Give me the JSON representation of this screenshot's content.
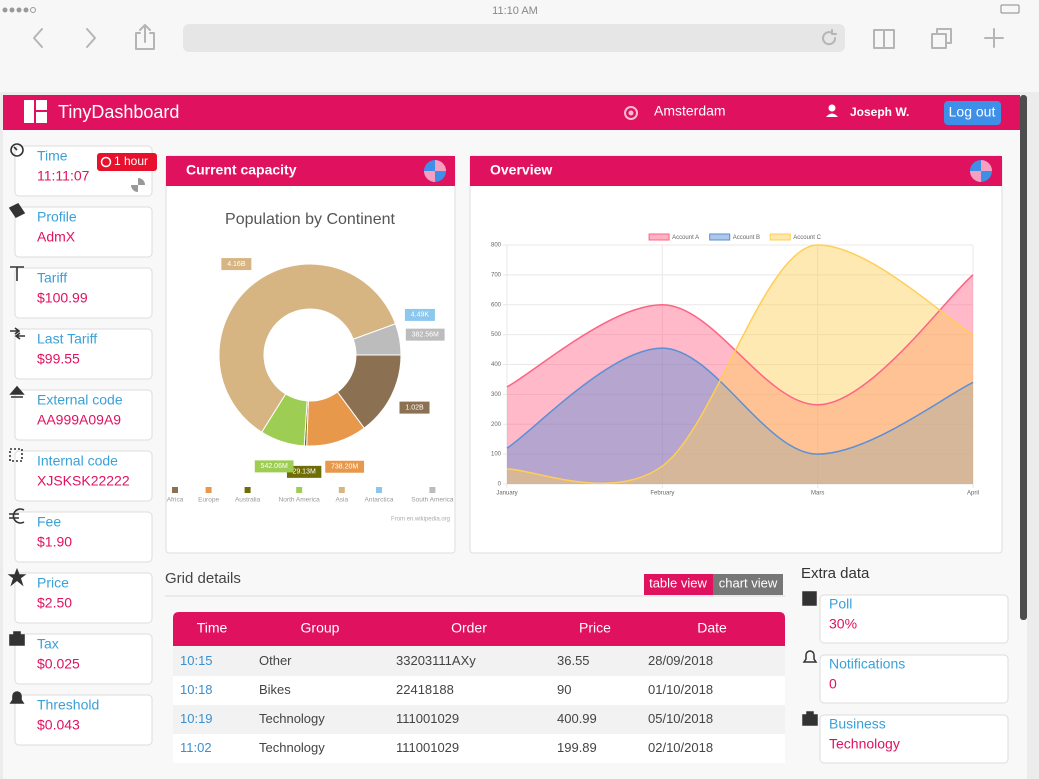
{
  "browser": {
    "time": "11:10 AM"
  },
  "header": {
    "brand": "TinyDashboard",
    "city": "Amsterdam",
    "user": "Joseph W.",
    "logout": "Log out"
  },
  "sidebar": {
    "timer_badge": "1 hour",
    "items": [
      {
        "label": "Time",
        "value": "11:11:07"
      },
      {
        "label": "Profile",
        "value": "AdmX"
      },
      {
        "label": "Tariff",
        "value": "$100.99"
      },
      {
        "label": "Last Tariff",
        "value": "$99.55"
      },
      {
        "label": "External code",
        "value": "AA999A09A9"
      },
      {
        "label": "Internal code",
        "value": "XJSKSK22222"
      },
      {
        "label": "Fee",
        "value": "$1.90"
      },
      {
        "label": "Price",
        "value": "$2.50"
      },
      {
        "label": "Tax",
        "value": "$0.025"
      },
      {
        "label": "Threshold",
        "value": "$0.043"
      }
    ]
  },
  "panels": {
    "capacity": "Current capacity",
    "overview": "Overview"
  },
  "chart_data": [
    {
      "type": "doughnut",
      "title": "Population by Continent",
      "categories": [
        "Africa",
        "Europe",
        "Australia",
        "North America",
        "Asia",
        "Antarctica",
        "South America"
      ],
      "values": [
        1020000000,
        738200000,
        29130000,
        542060000,
        4160000000,
        4490,
        382560000
      ],
      "value_labels": [
        "1.02B",
        "738.20M",
        "29.13M",
        "542.06M",
        "4.16B",
        "4.49K",
        "382.56M"
      ],
      "colors": [
        "#8b7152",
        "#e8984b",
        "#6f6d05",
        "#9dcd52",
        "#d6b583",
        "#8cc7ee",
        "#bcbcbc"
      ],
      "source": "From en.wikipedia.org"
    },
    {
      "type": "area",
      "categories": [
        "January",
        "February",
        "Mars",
        "April"
      ],
      "series": [
        {
          "name": "Account A",
          "color": "#ff6384",
          "values": [
            325,
            600,
            265,
            700
          ]
        },
        {
          "name": "Account B",
          "color": "#5b8fd6",
          "values": [
            120,
            455,
            100,
            340
          ]
        },
        {
          "name": "Account C",
          "color": "#ffce56",
          "values": [
            50,
            60,
            800,
            500
          ]
        }
      ],
      "ylim": [
        0,
        800
      ],
      "yticks": [
        0,
        100,
        200,
        300,
        400,
        500,
        600,
        700,
        800
      ],
      "grid": true
    }
  ],
  "grid": {
    "title": "Grid details",
    "buttons": [
      "table view",
      "chart view"
    ],
    "columns": [
      "Time",
      "Group",
      "Order",
      "Price",
      "Date"
    ],
    "rows": [
      [
        "10:15",
        "Other",
        "33203111AXy",
        "36.55",
        "28/09/2018"
      ],
      [
        "10:18",
        "Bikes",
        "22418188",
        "90",
        "01/10/2018"
      ],
      [
        "10:19",
        "Technology",
        "111001029",
        "400.99",
        "05/10/2018"
      ],
      [
        "11:02",
        "Technology",
        "111001029",
        "199.89",
        "02/10/2018"
      ]
    ]
  },
  "extra": {
    "title": "Extra data",
    "items": [
      {
        "label": "Poll",
        "value": "30%"
      },
      {
        "label": "Notifications",
        "value": "0"
      },
      {
        "label": "Business",
        "value": "Technology"
      }
    ]
  }
}
